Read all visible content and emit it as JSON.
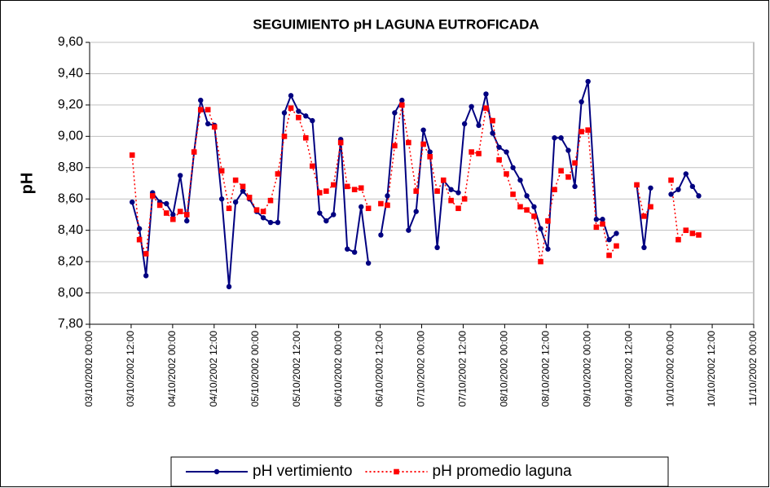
{
  "chart_data": {
    "type": "line",
    "title": "SEGUIMIENTO pH LAGUNA EUTROFICADA",
    "y_label": "pH",
    "x": [
      12.3,
      14.4,
      16.3,
      18.2,
      20.3,
      22.2,
      24.1,
      26.2,
      28.1,
      30.2,
      32.1,
      34.2,
      36.1,
      38.2,
      40.3,
      42.2,
      44.3,
      46.2,
      48.3,
      50.2,
      52.3,
      54.4,
      56.3,
      58.2,
      60.4,
      62.5,
      64.4,
      66.5,
      68.4,
      70.5,
      72.6,
      74.5,
      76.6,
      78.5,
      80.6,
      82.4,
      84.2,
      86.1,
      88.2,
      90.3,
      92.2,
      94.4,
      96.5,
      98.4,
      100.5,
      102.3,
      104.5,
      106.6,
      108.4,
      110.4,
      112.5,
      114.6,
      116.5,
      118.4,
      120.5,
      122.4,
      124.5,
      126.4,
      128.5,
      130.4,
      132.5,
      134.4,
      136.3,
      138.4,
      140.3,
      142.2,
      144.1,
      146.5,
      148.3,
      150.2,
      152.3,
      155.2,
      158.2,
      160.3,
      162.2,
      165.2,
      168.1,
      170.2,
      172.4,
      174.3,
      176.1
    ],
    "series": [
      {
        "name": "pH vertimiento",
        "color": "#000080",
        "marker": "circle",
        "dash": false,
        "values": [
          8.58,
          8.41,
          8.11,
          8.64,
          8.58,
          8.57,
          8.5,
          8.75,
          8.46,
          8.9,
          9.23,
          9.08,
          9.07,
          8.6,
          8.04,
          8.58,
          8.65,
          8.6,
          8.52,
          8.48,
          8.45,
          8.45,
          9.15,
          9.26,
          9.16,
          9.13,
          9.1,
          8.51,
          8.46,
          8.5,
          8.98,
          8.28,
          8.26,
          8.55,
          8.19,
          null,
          8.37,
          8.62,
          9.15,
          9.23,
          8.4,
          8.52,
          9.04,
          8.9,
          8.29,
          8.72,
          8.66,
          8.64,
          9.08,
          9.19,
          9.07,
          9.27,
          9.02,
          8.93,
          8.9,
          8.8,
          8.72,
          8.62,
          8.55,
          8.41,
          8.28,
          8.99,
          8.99,
          8.91,
          8.68,
          9.22,
          9.35,
          8.47,
          8.47,
          8.34,
          8.38,
          null,
          8.69,
          8.29,
          8.67,
          null,
          8.63,
          8.66,
          8.76,
          8.68,
          8.62
        ]
      },
      {
        "name": "pH promedio laguna",
        "color": "#ff0000",
        "marker": "square",
        "dash": true,
        "values": [
          8.88,
          8.34,
          8.25,
          8.62,
          8.56,
          8.51,
          8.47,
          8.52,
          8.5,
          8.9,
          9.17,
          9.17,
          9.06,
          8.78,
          8.54,
          8.72,
          8.68,
          8.61,
          8.53,
          8.52,
          8.59,
          8.76,
          9.0,
          9.18,
          9.12,
          8.99,
          8.81,
          8.64,
          8.65,
          8.69,
          8.96,
          8.68,
          8.66,
          8.67,
          8.54,
          null,
          8.57,
          8.56,
          8.94,
          9.2,
          8.96,
          8.65,
          8.95,
          8.87,
          8.65,
          8.72,
          8.59,
          8.54,
          8.6,
          8.9,
          8.89,
          9.18,
          9.1,
          8.85,
          8.76,
          8.63,
          8.55,
          8.53,
          8.49,
          8.2,
          8.46,
          8.66,
          8.78,
          8.74,
          8.83,
          9.03,
          9.04,
          8.42,
          8.44,
          8.24,
          8.3,
          null,
          8.69,
          8.49,
          8.55,
          null,
          8.72,
          8.34,
          8.4,
          8.38,
          8.37
        ]
      }
    ],
    "xlim": [
      0,
      192
    ],
    "xticks": [
      {
        "value": 0,
        "label": "03/10/2002 00:00"
      },
      {
        "value": 12,
        "label": "03/10/2002 12:00"
      },
      {
        "value": 24,
        "label": "04/10/2002 00:00"
      },
      {
        "value": 36,
        "label": "04/10/2002 12:00"
      },
      {
        "value": 48,
        "label": "05/10/2002 00:00"
      },
      {
        "value": 60,
        "label": "05/10/2002 12:00"
      },
      {
        "value": 72,
        "label": "06/10/2002 00:00"
      },
      {
        "value": 84,
        "label": "06/10/2002 12:00"
      },
      {
        "value": 96,
        "label": "07/10/2002 00:00"
      },
      {
        "value": 108,
        "label": "07/10/2002 12:00"
      },
      {
        "value": 120,
        "label": "08/10/2002 00:00"
      },
      {
        "value": 132,
        "label": "08/10/2002 12:00"
      },
      {
        "value": 144,
        "label": "09/10/2002 00:00"
      },
      {
        "value": 156,
        "label": "09/10/2002 12:00"
      },
      {
        "value": 168,
        "label": "10/10/2002 00:00"
      },
      {
        "value": 180,
        "label": "10/10/2002 12:00"
      },
      {
        "value": 192,
        "label": "11/10/2002 00:00"
      }
    ],
    "ylim": [
      7.8,
      9.6
    ],
    "yticks": [
      {
        "value": 7.8,
        "label": "7,80"
      },
      {
        "value": 8.0,
        "label": "8,00"
      },
      {
        "value": 8.2,
        "label": "8,20"
      },
      {
        "value": 8.4,
        "label": "8,40"
      },
      {
        "value": 8.6,
        "label": "8,60"
      },
      {
        "value": 8.8,
        "label": "8,80"
      },
      {
        "value": 9.0,
        "label": "9,00"
      },
      {
        "value": 9.2,
        "label": "9,20"
      },
      {
        "value": 9.4,
        "label": "9,40"
      },
      {
        "value": 9.6,
        "label": "9,60"
      }
    ],
    "grid": true,
    "legend": "bottom"
  }
}
